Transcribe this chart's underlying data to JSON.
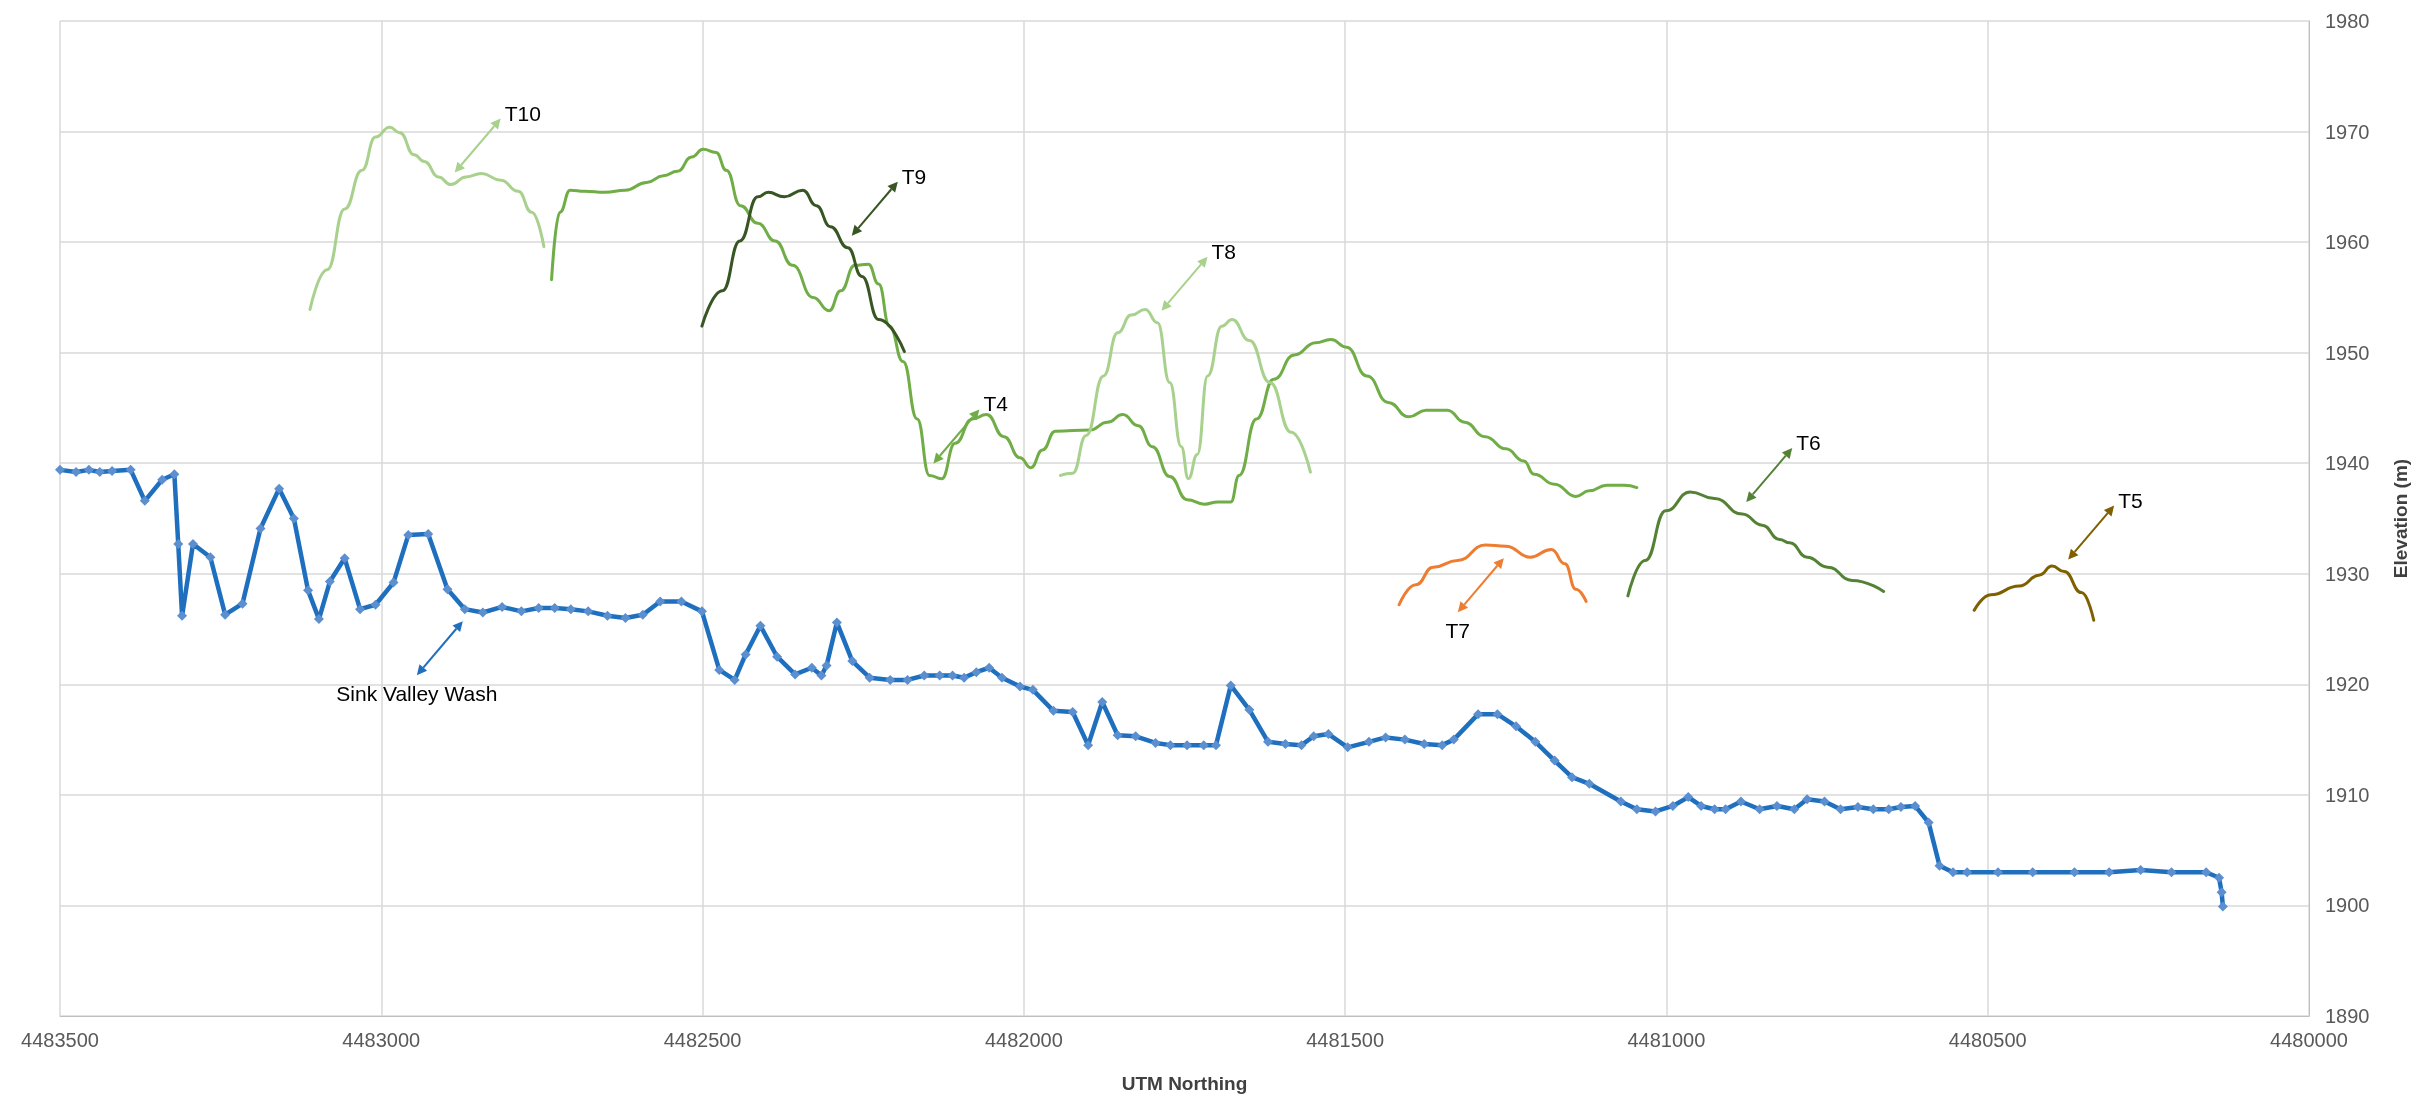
{
  "chart_data": {
    "type": "line",
    "xlabel": "UTM Northing",
    "ylabel": "Elevation (m)",
    "xlim": [
      4483500,
      4480000
    ],
    "xticks": [
      4483500,
      4483000,
      4482500,
      4482000,
      4481500,
      4481000,
      4480500,
      4480000
    ],
    "ylim": [
      1890,
      1980
    ],
    "yticks": [
      1890,
      1900,
      1910,
      1920,
      1930,
      1940,
      1950,
      1960,
      1970,
      1980
    ],
    "grid": true,
    "series": [
      {
        "name": "Sink Valley Wash",
        "color": "#1f6fbf",
        "marker": "diamond",
        "x": [
          4483500,
          4483475,
          4483455,
          4483438,
          4483419,
          4483390,
          4483368,
          4483341,
          4483322,
          4483316,
          4483310,
          4483293,
          4483266,
          4483243,
          4483216,
          4483188,
          4483159,
          4483136,
          4483114,
          4483097,
          4483080,
          4483057,
          4483033,
          4483009,
          4482981,
          4482958,
          4482927,
          4482897,
          4482870,
          4482842,
          4482812,
          4482782,
          4482755,
          4482730,
          4482705,
          4482678,
          4482648,
          4482620,
          4482593,
          4482566,
          4482533,
          4482501,
          4482474,
          4482450,
          4482433,
          4482410,
          4482384,
          4482356,
          4482330,
          4482315,
          4482307,
          4482291,
          4482267,
          4482240,
          4482208,
          4482181,
          4482155,
          4482131,
          4482111,
          4482093,
          4482074,
          4482054,
          4482034,
          4482006,
          4481986,
          4481954,
          4481924,
          4481900,
          4481878,
          4481854,
          4481826,
          4481795,
          4481772,
          4481746,
          4481720,
          4481701,
          4481678,
          4481649,
          4481620,
          4481593,
          4481568,
          4481549,
          4481526,
          4481496,
          4481463,
          4481437,
          4481407,
          4481377,
          4481349,
          4481331,
          4481293,
          4481263,
          4481234,
          4481204,
          4481174,
          4481147,
          4481120,
          4481071,
          4481046,
          4481017,
          4480990,
          4480966,
          4480946,
          4480925,
          4480908,
          4480884,
          4480855,
          4480828,
          4480801,
          4480781,
          4480754,
          4480729,
          4480702,
          4480678,
          4480654,
          4480635,
          4480613,
          4480592,
          4480575,
          4480554,
          4480532,
          4480484,
          4480430,
          4480365,
          4480311,
          4480262,
          4480214,
          4480160,
          4480140,
          4480136,
          4480134
        ],
        "values": [
          1939.4,
          1939.2,
          1939.4,
          1939.2,
          1939.3,
          1939.4,
          1936.6,
          1938.5,
          1939.0,
          1932.7,
          1926.2,
          1932.7,
          1931.5,
          1926.3,
          1927.3,
          1934.1,
          1937.7,
          1935.0,
          1928.5,
          1925.9,
          1929.3,
          1931.4,
          1926.8,
          1927.2,
          1929.2,
          1933.5,
          1933.6,
          1928.6,
          1926.8,
          1926.5,
          1927.0,
          1926.6,
          1926.9,
          1926.9,
          1926.8,
          1926.6,
          1926.2,
          1926.0,
          1926.3,
          1927.5,
          1927.5,
          1926.6,
          1921.3,
          1920.4,
          1922.7,
          1925.3,
          1922.5,
          1920.9,
          1921.5,
          1920.8,
          1921.7,
          1925.6,
          1922.1,
          1920.6,
          1920.4,
          1920.4,
          1920.8,
          1920.8,
          1920.8,
          1920.6,
          1921.1,
          1921.5,
          1920.6,
          1919.8,
          1919.5,
          1917.6,
          1917.5,
          1914.5,
          1918.4,
          1915.4,
          1915.3,
          1914.7,
          1914.5,
          1914.5,
          1914.5,
          1914.5,
          1919.9,
          1917.7,
          1914.8,
          1914.6,
          1914.5,
          1915.3,
          1915.5,
          1914.3,
          1914.8,
          1915.2,
          1915.0,
          1914.6,
          1914.5,
          1915.0,
          1917.3,
          1917.3,
          1916.2,
          1914.8,
          1913.1,
          1911.6,
          1911.0,
          1909.4,
          1908.7,
          1908.5,
          1909.0,
          1909.8,
          1909.0,
          1908.7,
          1908.7,
          1909.4,
          1908.7,
          1909.0,
          1908.7,
          1909.6,
          1909.4,
          1908.7,
          1908.9,
          1908.7,
          1908.7,
          1908.9,
          1909.0,
          1907.5,
          1903.6,
          1903.0,
          1903.0,
          1903.0,
          1903.0,
          1903.0,
          1903.0,
          1903.2,
          1903.0,
          1903.0,
          1902.5,
          1901.2,
          1899.9
        ]
      },
      {
        "name": "T10",
        "color": "#a9d18e",
        "marker": "none",
        "x": [
          4483111,
          4483084,
          4483057,
          4483030,
          4483009,
          4482987,
          4482971,
          4482949,
          4482933,
          4482911,
          4482892,
          4482868,
          4482844,
          4482814,
          4482787,
          4482766,
          4482747
        ],
        "values": [
          1953.9,
          1957.5,
          1963.0,
          1966.5,
          1969.5,
          1970.4,
          1969.9,
          1967.9,
          1967.3,
          1965.9,
          1965.2,
          1965.9,
          1966.2,
          1965.6,
          1964.6,
          1962.7,
          1959.6
        ]
      },
      {
        "name": "T4",
        "color": "#70ad47",
        "marker": "none",
        "x": [
          4482735,
          4482722,
          4482706,
          4482684,
          4482652,
          4482620,
          4482587,
          4482561,
          4482539,
          4482517,
          4482499,
          4482479,
          4482463,
          4482441,
          4482414,
          4482387,
          4482360,
          4482328,
          4482303,
          4482285,
          4482263,
          4482242,
          4482226,
          4482209,
          4482188,
          4482166,
          4482147,
          4482128,
          4482107,
          4482080,
          4482058,
          4482031,
          4482006,
          4481989,
          4481971,
          4481951,
          4481897,
          4481870,
          4481846,
          4481822,
          4481800,
          4481773,
          4481746,
          4481719,
          4481698,
          4481678,
          4481665,
          4481638,
          4481611,
          4481579,
          4481546,
          4481522,
          4481498,
          4481466,
          4481433,
          4481401,
          4481374,
          4481341,
          4481314,
          4481282,
          4481250,
          4481222,
          4481206,
          4481174,
          4481141,
          4481120,
          4481093,
          4481066,
          4481046
        ],
        "values": [
          1956.6,
          1962.7,
          1964.7,
          1964.6,
          1964.5,
          1964.7,
          1965.4,
          1966.0,
          1966.4,
          1967.7,
          1968.4,
          1968.1,
          1966.5,
          1963.3,
          1961.7,
          1960.1,
          1957.9,
          1955.0,
          1953.8,
          1955.6,
          1957.9,
          1958.0,
          1956.2,
          1952.4,
          1949.2,
          1944.0,
          1938.9,
          1938.6,
          1941.8,
          1944.0,
          1944.4,
          1942.4,
          1940.5,
          1939.6,
          1941.2,
          1942.9,
          1943.0,
          1943.7,
          1944.4,
          1943.4,
          1941.5,
          1938.8,
          1936.7,
          1936.3,
          1936.5,
          1936.5,
          1938.9,
          1944.0,
          1947.6,
          1949.8,
          1950.9,
          1951.2,
          1950.5,
          1947.9,
          1945.5,
          1944.2,
          1944.8,
          1944.8,
          1943.7,
          1942.4,
          1941.3,
          1940.2,
          1939.0,
          1938.1,
          1937.0,
          1937.5,
          1938.0,
          1938.0,
          1937.8
        ]
      },
      {
        "name": "T9",
        "color": "#375623",
        "marker": "none",
        "x": [
          4482501,
          4482469,
          4482442,
          4482414,
          4482398,
          4482373,
          4482344,
          4482323,
          4482301,
          4482274,
          4482252,
          4482226,
          4482186
        ],
        "values": [
          1952.4,
          1955.6,
          1960.1,
          1964.1,
          1964.5,
          1964.1,
          1964.7,
          1963.3,
          1961.4,
          1959.5,
          1956.9,
          1953.0,
          1950.1
        ]
      },
      {
        "name": "T8",
        "color": "#a9d18e",
        "marker": "none",
        "x": [
          4481943,
          4481924,
          4481903,
          4481876,
          4481854,
          4481833,
          4481811,
          4481792,
          4481773,
          4481755,
          4481744,
          4481730,
          4481714,
          4481692,
          4481676,
          4481649,
          4481617,
          4481584,
          4481554
        ],
        "values": [
          1938.9,
          1939.1,
          1942.5,
          1947.9,
          1951.8,
          1953.4,
          1953.9,
          1952.7,
          1947.3,
          1941.5,
          1938.6,
          1940.8,
          1947.9,
          1952.4,
          1953.0,
          1951.1,
          1947.3,
          1942.8,
          1939.2
        ]
      },
      {
        "name": "T7",
        "color": "#ed7d31",
        "marker": "none",
        "x": [
          4481416,
          4481390,
          4481363,
          4481325,
          4481282,
          4481250,
          4481212,
          4481179,
          4481158,
          4481141,
          4481125
        ],
        "values": [
          1927.2,
          1929.0,
          1930.6,
          1931.2,
          1932.6,
          1932.5,
          1931.5,
          1932.2,
          1930.9,
          1928.6,
          1927.5
        ]
      },
      {
        "name": "T6",
        "color": "#548235",
        "marker": "none",
        "x": [
          4481060,
          4481033,
          4481001,
          4480963,
          4480925,
          4480882,
          4480851,
          4480824,
          4480808,
          4480781,
          4480749,
          4480711,
          4480662
        ],
        "values": [
          1928.0,
          1931.2,
          1935.7,
          1937.4,
          1936.8,
          1935.4,
          1934.4,
          1933.1,
          1932.8,
          1931.5,
          1930.6,
          1929.4,
          1928.4
        ]
      },
      {
        "name": "T5",
        "color": "#7f6000",
        "marker": "none",
        "x": [
          4480521,
          4480495,
          4480451,
          4480419,
          4480400,
          4480381,
          4480354,
          4480335
        ],
        "values": [
          1926.7,
          1928.1,
          1928.9,
          1929.9,
          1930.7,
          1930.2,
          1928.3,
          1925.8
        ]
      }
    ],
    "line_style": "solid",
    "legend": "top"
  }
}
